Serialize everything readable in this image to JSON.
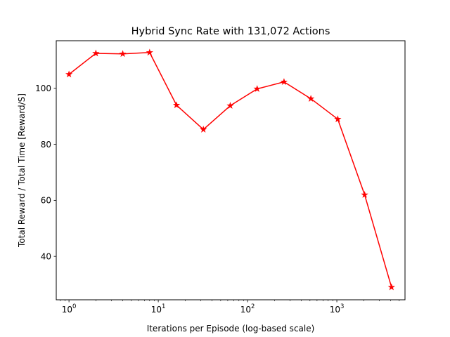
{
  "chart_data": {
    "type": "line",
    "title": "Hybrid Sync Rate with 131,072 Actions",
    "xlabel": "Iterations per Episode (log-based scale)",
    "ylabel": "Total Reward / Total Time [Reward/S]",
    "x_scale": "log",
    "xlim": [
      0.72,
      5800
    ],
    "ylim": [
      24.5,
      117
    ],
    "x_ticks": [
      {
        "base": "10",
        "exp": "0",
        "value": 1
      },
      {
        "base": "10",
        "exp": "1",
        "value": 10
      },
      {
        "base": "10",
        "exp": "2",
        "value": 100
      },
      {
        "base": "10",
        "exp": "3",
        "value": 1000
      }
    ],
    "y_ticks": [
      "40",
      "60",
      "80",
      "100"
    ],
    "grid": false,
    "series": [
      {
        "color": "#ff0000",
        "marker": "star",
        "x": [
          1,
          2,
          4,
          8,
          16,
          32,
          64,
          128,
          256,
          512,
          1024,
          2048,
          4096
        ],
        "y": [
          105,
          112.5,
          112.3,
          112.8,
          94,
          85.3,
          93.8,
          99.8,
          102.3,
          96.3,
          89,
          62,
          29
        ]
      }
    ]
  }
}
